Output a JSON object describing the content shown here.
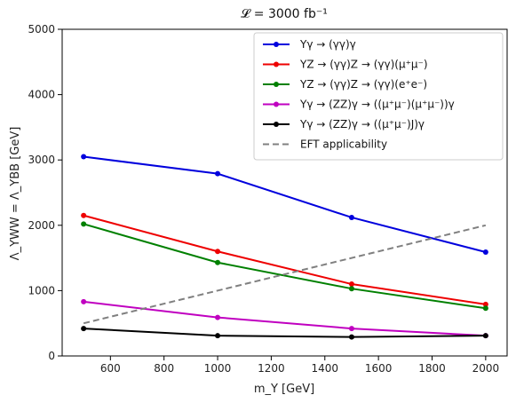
{
  "chart_data": {
    "type": "line",
    "title": "𝓛 = 3000 fb⁻¹",
    "xlabel": "m_Y [GeV]",
    "ylabel": "Λ_YWW = Λ_YBB [GeV]",
    "xlim": [
      420,
      2080
    ],
    "ylim": [
      0,
      5000
    ],
    "xticks": [
      600,
      800,
      1000,
      1200,
      1400,
      1600,
      1800,
      2000
    ],
    "yticks": [
      0,
      1000,
      2000,
      3000,
      4000,
      5000
    ],
    "grid": false,
    "legend_position": "top-right",
    "series": [
      {
        "name": "Yγ → (γγ)γ",
        "color": "#0000dd",
        "style": "solid",
        "marker": "circle",
        "x": [
          500,
          1000,
          1500,
          2000
        ],
        "y": [
          3050,
          2790,
          2120,
          1590
        ]
      },
      {
        "name": "YZ → (γγ)Z → (γγ)(μ⁺μ⁻)",
        "color": "#ee0000",
        "style": "solid",
        "marker": "circle",
        "x": [
          500,
          1000,
          1500,
          2000
        ],
        "y": [
          2150,
          1600,
          1100,
          790
        ]
      },
      {
        "name": "YZ → (γγ)Z → (γγ)(e⁺e⁻)",
        "color": "#008000",
        "style": "solid",
        "marker": "circle",
        "x": [
          500,
          1000,
          1500,
          2000
        ],
        "y": [
          2020,
          1430,
          1030,
          730
        ]
      },
      {
        "name": "Yγ → (ZZ)γ → ((μ⁺μ⁻)(μ⁺μ⁻))γ",
        "color": "#c000c0",
        "style": "solid",
        "marker": "circle",
        "x": [
          500,
          1000,
          1500,
          2000
        ],
        "y": [
          830,
          590,
          420,
          310
        ]
      },
      {
        "name": "Yγ → (ZZ)γ → ((μ⁺μ⁻)J)γ",
        "color": "#000000",
        "style": "solid",
        "marker": "circle",
        "x": [
          500,
          1000,
          1500,
          2000
        ],
        "y": [
          420,
          310,
          290,
          310
        ]
      },
      {
        "name": "EFT applicability",
        "color": "#808080",
        "style": "dashed",
        "marker": "none",
        "x": [
          500,
          2000
        ],
        "y": [
          500,
          2000
        ]
      }
    ]
  }
}
